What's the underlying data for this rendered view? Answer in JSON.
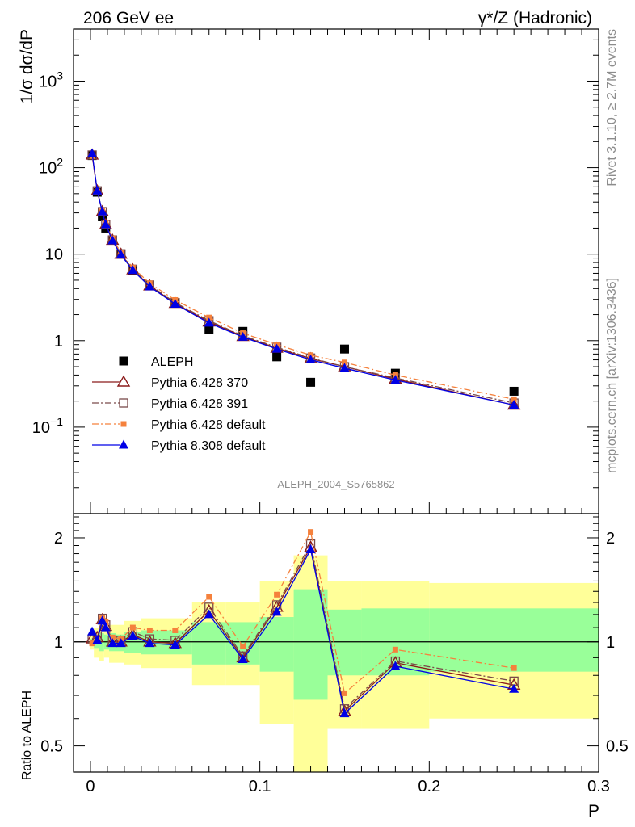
{
  "header": {
    "left": "206 GeV ee",
    "right": "γ*/Z (Hadronic)"
  },
  "side_labels": {
    "rivet": "Rivet 3.1.10, ≥ 2.7M events",
    "mcplots": "mcplots.cern.ch [arXiv:1306.3436]"
  },
  "analysis_id": "ALEPH_2004_S5765862",
  "chart_data": [
    {
      "type": "line",
      "panel": "main",
      "ylabel": "1/σ  dσ/dP",
      "yscale": "log",
      "ylim": [
        0.01,
        4000
      ],
      "xlim": [
        -0.01,
        0.3
      ],
      "ytick_labels": [
        {
          "v": 0.1,
          "base": "10",
          "exp": "−1"
        },
        {
          "v": 1,
          "base": "1",
          "exp": ""
        },
        {
          "v": 10,
          "base": "10",
          "exp": ""
        },
        {
          "v": 100,
          "base": "10",
          "exp": "2"
        },
        {
          "v": 1000,
          "base": "10",
          "exp": "3"
        }
      ],
      "legend_position": "lower-left",
      "x": [
        0.001,
        0.004,
        0.007,
        0.009,
        0.013,
        0.018,
        0.025,
        0.035,
        0.05,
        0.07,
        0.09,
        0.11,
        0.13,
        0.15,
        0.18,
        0.25
      ],
      "series": [
        {
          "name": "ALEPH",
          "color": "#000000",
          "marker": "square",
          "style": "points",
          "values": [
            138,
            52,
            27,
            20,
            14.5,
            10,
            6.5,
            4.3,
            2.75,
            1.35,
            1.28,
            0.65,
            0.33,
            0.8,
            0.42,
            0.26
          ]
        },
        {
          "name": "Pythia 6.428 370",
          "color": "#8b1a1a",
          "marker": "triangle-open",
          "style": "solid",
          "values": [
            140,
            54,
            31,
            22,
            14.5,
            10,
            6.6,
            4.3,
            2.7,
            1.65,
            1.12,
            0.82,
            0.62,
            0.5,
            0.36,
            0.18
          ]
        },
        {
          "name": "Pythia 6.428 391",
          "color": "#7a4a4a",
          "marker": "square-open",
          "style": "dashdot",
          "values": [
            140,
            54,
            31,
            22,
            14.6,
            10.1,
            6.7,
            4.4,
            2.75,
            1.7,
            1.14,
            0.84,
            0.63,
            0.5,
            0.37,
            0.19
          ]
        },
        {
          "name": "Pythia 6.428 default",
          "color": "#f5813c",
          "marker": "square-small",
          "style": "dashdot",
          "values": [
            136,
            53,
            32,
            23,
            15.2,
            10.4,
            7,
            4.6,
            2.95,
            1.85,
            1.22,
            0.9,
            0.68,
            0.56,
            0.4,
            0.21
          ]
        },
        {
          "name": "Pythia 8.308 default",
          "color": "#0000e6",
          "marker": "triangle-filled",
          "style": "solid",
          "values": [
            145,
            54,
            31,
            22,
            14.3,
            9.8,
            6.5,
            4.2,
            2.65,
            1.6,
            1.1,
            0.8,
            0.6,
            0.48,
            0.35,
            0.18
          ]
        }
      ]
    },
    {
      "type": "line",
      "panel": "ratio",
      "ylabel": "Ratio to ALEPH",
      "xlabel": "P",
      "yscale": "log",
      "ylim": [
        0.42,
        2.35
      ],
      "xlim": [
        -0.01,
        0.3
      ],
      "xticks": [
        "0",
        "0.1",
        "0.2",
        "0.3"
      ],
      "ytick_labels": [
        {
          "v": 0.5,
          "label": "0.5"
        },
        {
          "v": 1,
          "label": "1"
        },
        {
          "v": 2,
          "label": "2"
        }
      ],
      "uncertainty_bins": [
        0,
        0.002,
        0.005,
        0.008,
        0.011,
        0.015,
        0.02,
        0.03,
        0.04,
        0.06,
        0.08,
        0.1,
        0.12,
        0.14,
        0.16,
        0.2,
        0.3
      ],
      "band_inner": [
        [
          0.98,
          1.02
        ],
        [
          0.96,
          1.04
        ],
        [
          0.94,
          1.06
        ],
        [
          0.95,
          1.05
        ],
        [
          0.94,
          1.06
        ],
        [
          0.94,
          1.05
        ],
        [
          0.93,
          1.07
        ],
        [
          0.92,
          1.08
        ],
        [
          0.92,
          1.08
        ],
        [
          0.86,
          1.14
        ],
        [
          0.86,
          1.14
        ],
        [
          0.82,
          1.18
        ],
        [
          0.68,
          1.42
        ],
        [
          0.8,
          1.24
        ],
        [
          0.8,
          1.25
        ],
        [
          0.82,
          1.25
        ]
      ],
      "band_outer": [
        [
          0.95,
          1.05
        ],
        [
          0.9,
          1.1
        ],
        [
          0.88,
          1.12
        ],
        [
          0.9,
          1.11
        ],
        [
          0.87,
          1.12
        ],
        [
          0.87,
          1.12
        ],
        [
          0.86,
          1.15
        ],
        [
          0.84,
          1.17
        ],
        [
          0.84,
          1.17
        ],
        [
          0.75,
          1.3
        ],
        [
          0.75,
          1.3
        ],
        [
          0.58,
          1.5
        ],
        [
          0.34,
          1.78
        ],
        [
          0.56,
          1.5
        ],
        [
          0.56,
          1.5
        ],
        [
          0.6,
          1.48
        ]
      ],
      "x": [
        0.001,
        0.004,
        0.007,
        0.009,
        0.013,
        0.018,
        0.025,
        0.035,
        0.05,
        0.07,
        0.09,
        0.11,
        0.13,
        0.15,
        0.18,
        0.25
      ],
      "series": [
        {
          "name": "Pythia 6.428 370",
          "color": "#8b1a1a",
          "marker": "triangle-open",
          "style": "solid",
          "values": [
            1.02,
            1.03,
            1.16,
            1.11,
            1.0,
            1.0,
            1.05,
            1.0,
            0.99,
            1.23,
            0.9,
            1.26,
            1.88,
            0.63,
            0.87,
            0.75
          ]
        },
        {
          "name": "Pythia 6.428 391",
          "color": "#7a4a4a",
          "marker": "square-open",
          "style": "dashdot",
          "values": [
            1.02,
            1.04,
            1.17,
            1.12,
            1.01,
            1.01,
            1.07,
            1.02,
            1.01,
            1.26,
            0.91,
            1.28,
            1.92,
            0.64,
            0.88,
            0.77
          ]
        },
        {
          "name": "Pythia 6.428 default",
          "color": "#f5813c",
          "marker": "square-small",
          "style": "dashdot",
          "values": [
            0.99,
            1.01,
            1.17,
            1.14,
            1.03,
            1.02,
            1.1,
            1.08,
            1.08,
            1.35,
            0.97,
            1.37,
            2.08,
            0.71,
            0.95,
            0.84
          ]
        },
        {
          "name": "Pythia 8.308 default",
          "color": "#0000e6",
          "marker": "triangle-filled",
          "style": "solid",
          "values": [
            1.07,
            1.01,
            1.15,
            1.1,
            0.99,
            0.99,
            1.04,
            0.99,
            0.98,
            1.2,
            0.89,
            1.22,
            1.85,
            0.62,
            0.85,
            0.73
          ]
        }
      ]
    }
  ]
}
